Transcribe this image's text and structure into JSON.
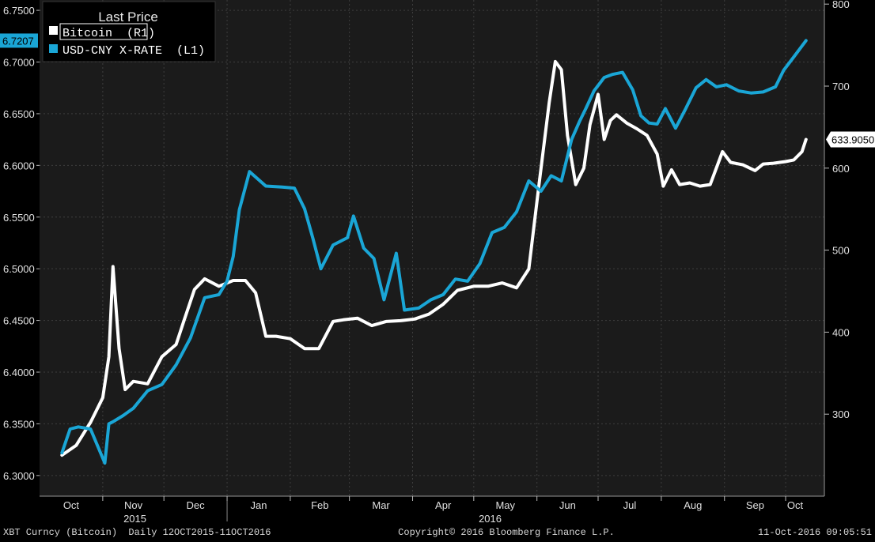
{
  "chart_data": {
    "type": "line",
    "legend": {
      "title": "Last Price",
      "placement": "top-left"
    },
    "left_axis": {
      "ylim": [
        6.28,
        6.76
      ],
      "ticks": [
        "6.3000",
        "6.3500",
        "6.4000",
        "6.4500",
        "6.5000",
        "6.5500",
        "6.6000",
        "6.6500",
        "6.7000",
        "6.7500"
      ],
      "last_value_label": "6.7207"
    },
    "right_axis": {
      "ylim": [
        200,
        805
      ],
      "ticks": [
        "300",
        "400",
        "500",
        "600",
        "700",
        "800"
      ],
      "last_value_label": "633.9050"
    },
    "x_axis": {
      "months": [
        "Oct",
        "Nov",
        "Dec",
        "Jan",
        "Feb",
        "Mar",
        "Apr",
        "May",
        "Jun",
        "Jul",
        "Aug",
        "Sep",
        "Oct"
      ],
      "years": [
        "2015",
        "2016"
      ]
    },
    "grid": true,
    "series": [
      {
        "name": "Bitcoin  (R1)",
        "axis": "right",
        "color": "#ffffff",
        "dates": [
          "2015-10-12",
          "2015-10-19",
          "2015-10-26",
          "2015-11-01",
          "2015-11-04",
          "2015-11-06",
          "2015-11-09",
          "2015-11-12",
          "2015-11-16",
          "2015-11-23",
          "2015-11-30",
          "2015-12-07",
          "2015-12-11",
          "2015-12-16",
          "2015-12-21",
          "2015-12-28",
          "2016-01-04",
          "2016-01-10",
          "2016-01-15",
          "2016-01-20",
          "2016-01-25",
          "2016-02-01",
          "2016-02-08",
          "2016-02-15",
          "2016-02-22",
          "2016-02-27",
          "2016-03-05",
          "2016-03-12",
          "2016-03-19",
          "2016-03-26",
          "2016-04-02",
          "2016-04-09",
          "2016-04-16",
          "2016-04-23",
          "2016-05-01",
          "2016-05-08",
          "2016-05-15",
          "2016-05-22",
          "2016-05-28",
          "2016-06-02",
          "2016-06-07",
          "2016-06-10",
          "2016-06-13",
          "2016-06-16",
          "2016-06-20",
          "2016-06-24",
          "2016-06-27",
          "2016-07-01",
          "2016-07-04",
          "2016-07-07",
          "2016-07-10",
          "2016-07-15",
          "2016-07-20",
          "2016-07-25",
          "2016-07-30",
          "2016-08-02",
          "2016-08-06",
          "2016-08-10",
          "2016-08-15",
          "2016-08-20",
          "2016-08-25",
          "2016-08-31",
          "2016-09-04",
          "2016-09-10",
          "2016-09-16",
          "2016-09-20",
          "2016-09-25",
          "2016-10-01",
          "2016-10-05",
          "2016-10-09",
          "2016-10-11"
        ],
        "values": [
          250,
          262,
          290,
          320,
          370,
          480,
          380,
          330,
          340,
          337,
          370,
          385,
          415,
          452,
          465,
          456,
          463,
          463,
          448,
          395,
          395,
          392,
          380,
          380,
          413,
          415,
          417,
          408,
          413,
          414,
          416,
          422,
          434,
          451,
          456,
          456,
          460,
          454,
          477,
          580,
          680,
          730,
          720,
          640,
          580,
          600,
          653,
          690,
          635,
          658,
          665,
          655,
          648,
          640,
          617,
          578,
          598,
          580,
          582,
          578,
          580,
          620,
          607,
          604,
          597,
          605,
          606,
          608,
          610,
          620,
          635
        ]
      },
      {
        "name": "USD-CNY X-RATE  (L1)",
        "axis": "left",
        "color": "#1aa6d6",
        "dates": [
          "2015-10-12",
          "2015-10-16",
          "2015-10-20",
          "2015-10-26",
          "2015-11-02",
          "2015-11-04",
          "2015-11-06",
          "2015-11-11",
          "2015-11-16",
          "2015-11-23",
          "2015-11-30",
          "2015-12-07",
          "2015-12-14",
          "2015-12-21",
          "2015-12-28",
          "2016-01-01",
          "2016-01-04",
          "2016-01-07",
          "2016-01-12",
          "2016-01-20",
          "2016-01-28",
          "2016-02-03",
          "2016-02-08",
          "2016-02-12",
          "2016-02-16",
          "2016-02-22",
          "2016-02-29",
          "2016-03-03",
          "2016-03-08",
          "2016-03-13",
          "2016-03-18",
          "2016-03-24",
          "2016-03-28",
          "2016-04-04",
          "2016-04-10",
          "2016-04-16",
          "2016-04-22",
          "2016-04-28",
          "2016-05-04",
          "2016-05-10",
          "2016-05-16",
          "2016-05-22",
          "2016-05-28",
          "2016-06-03",
          "2016-06-08",
          "2016-06-13",
          "2016-06-18",
          "2016-06-22",
          "2016-06-25",
          "2016-06-29",
          "2016-07-04",
          "2016-07-08",
          "2016-07-13",
          "2016-07-18",
          "2016-07-22",
          "2016-07-26",
          "2016-07-30",
          "2016-08-03",
          "2016-08-08",
          "2016-08-13",
          "2016-08-18",
          "2016-08-23",
          "2016-08-28",
          "2016-09-02",
          "2016-09-08",
          "2016-09-14",
          "2016-09-20",
          "2016-09-26",
          "2016-09-30",
          "2016-10-05",
          "2016-10-11"
        ],
        "values": [
          6.322,
          6.345,
          6.347,
          6.345,
          6.312,
          6.35,
          6.352,
          6.358,
          6.365,
          6.382,
          6.388,
          6.407,
          6.433,
          6.472,
          6.475,
          6.488,
          6.512,
          6.557,
          6.594,
          6.58,
          6.579,
          6.578,
          6.558,
          6.53,
          6.5,
          6.523,
          6.53,
          6.551,
          6.52,
          6.51,
          6.47,
          6.515,
          6.46,
          6.462,
          6.47,
          6.475,
          6.49,
          6.488,
          6.505,
          6.535,
          6.54,
          6.555,
          6.585,
          6.575,
          6.59,
          6.585,
          6.625,
          6.643,
          6.655,
          6.672,
          6.685,
          6.688,
          6.69,
          6.673,
          6.648,
          6.641,
          6.64,
          6.655,
          6.636,
          6.655,
          6.675,
          6.683,
          6.676,
          6.678,
          6.672,
          6.67,
          6.671,
          6.676,
          6.692,
          6.705,
          6.7207
        ]
      }
    ]
  },
  "footer": {
    "left": "XBT Curncy (Bitcoin)  Daily 12OCT2015-11OCT2016",
    "center": "Copyright© 2016 Bloomberg Finance L.P.",
    "right": "11-Oct-2016 09:05:51"
  }
}
